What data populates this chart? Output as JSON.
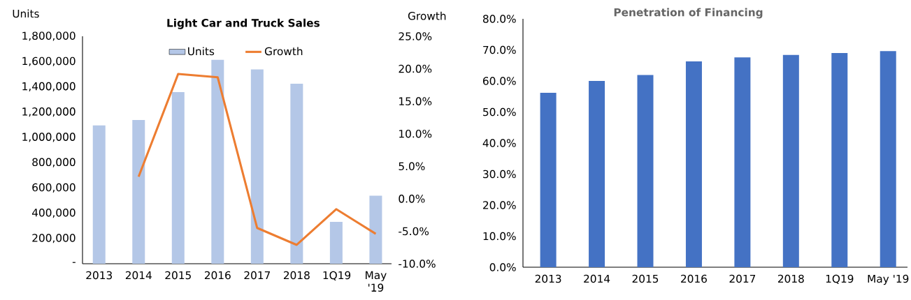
{
  "chart_data": [
    {
      "type": "bar",
      "title": "Light Car and Truck Sales",
      "ylabel": "Units",
      "y2label": "Growth",
      "categories": [
        "2013",
        "2014",
        "2015",
        "2016",
        "2017",
        "2018",
        "1Q19",
        "May '19"
      ],
      "series": [
        {
          "name": "Units",
          "type": "bar",
          "color": "#b4c7e7",
          "values": [
            1095000,
            1138000,
            1358000,
            1613000,
            1538000,
            1424000,
            332000,
            538000
          ]
        },
        {
          "name": "Growth",
          "type": "line",
          "axis": "y2",
          "color": "#ed7d31",
          "values": [
            null,
            3.4,
            19.2,
            18.7,
            -4.5,
            -7.1,
            -1.6,
            -5.4
          ]
        }
      ],
      "ylim": [
        0,
        1800000
      ],
      "yticks": [
        {
          "value": 0,
          "label": "-"
        },
        {
          "value": 200000,
          "label": "200,000"
        },
        {
          "value": 400000,
          "label": "400,000"
        },
        {
          "value": 600000,
          "label": "600,000"
        },
        {
          "value": 800000,
          "label": "800,000"
        },
        {
          "value": 1000000,
          "label": "1,000,000"
        },
        {
          "value": 1200000,
          "label": "1,200,000"
        },
        {
          "value": 1400000,
          "label": "1,400,000"
        },
        {
          "value": 1600000,
          "label": "1,600,000"
        },
        {
          "value": 1800000,
          "label": "1,800,000"
        }
      ],
      "y2lim": [
        -10,
        25
      ],
      "y2ticks": [
        {
          "value": -10,
          "label": "-10.0%"
        },
        {
          "value": -5,
          "label": "-5.0%"
        },
        {
          "value": 0,
          "label": "0.0%"
        },
        {
          "value": 5,
          "label": "5.0%"
        },
        {
          "value": 10,
          "label": "10.0%"
        },
        {
          "value": 15,
          "label": "15.0%"
        },
        {
          "value": 20,
          "label": "20.0%"
        },
        {
          "value": 25,
          "label": "25.0%"
        }
      ],
      "legend": "top"
    },
    {
      "type": "bar",
      "title": "Penetration of Financing",
      "categories": [
        "2013",
        "2014",
        "2015",
        "2016",
        "2017",
        "2018",
        "1Q19",
        "May '19"
      ],
      "values": [
        56.2,
        60.0,
        61.9,
        66.3,
        67.6,
        68.4,
        69.0,
        69.6
      ],
      "color": "#4472c4",
      "ylim": [
        0,
        80
      ],
      "yticks": [
        {
          "value": 0,
          "label": "0.0%"
        },
        {
          "value": 10,
          "label": "10.0%"
        },
        {
          "value": 20,
          "label": "20.0%"
        },
        {
          "value": 30,
          "label": "30.0%"
        },
        {
          "value": 40,
          "label": "40.0%"
        },
        {
          "value": 50,
          "label": "50.0%"
        },
        {
          "value": 60,
          "label": "60.0%"
        },
        {
          "value": 70,
          "label": "70.0%"
        },
        {
          "value": 80,
          "label": "80.0%"
        }
      ]
    }
  ]
}
